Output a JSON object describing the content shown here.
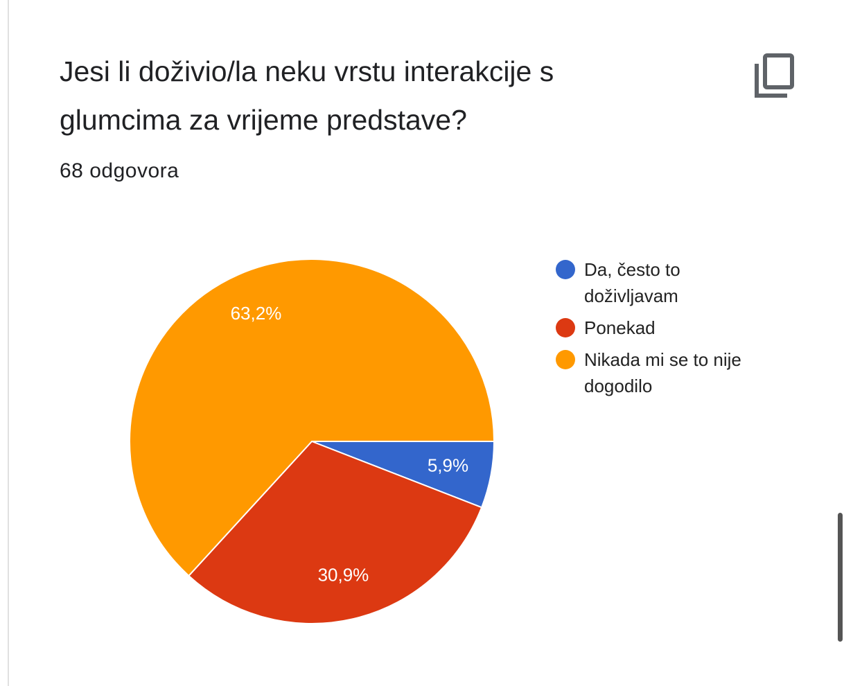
{
  "chart_data": {
    "type": "pie",
    "title": "Jesi li doživio/la neku vrstu interakcije s glumcima za vrijeme predstave?",
    "subtitle": "68 odgovora",
    "categories": [
      "Da, često to doživljavam",
      "Ponekad",
      "Nikada mi se to nije dogodilo"
    ],
    "values": [
      5.9,
      30.9,
      63.2
    ],
    "value_labels": [
      "5,9%",
      "30,9%",
      "63,2%"
    ],
    "colors": [
      "#3366cc",
      "#dc3912",
      "#ff9900"
    ],
    "legend": "right"
  }
}
